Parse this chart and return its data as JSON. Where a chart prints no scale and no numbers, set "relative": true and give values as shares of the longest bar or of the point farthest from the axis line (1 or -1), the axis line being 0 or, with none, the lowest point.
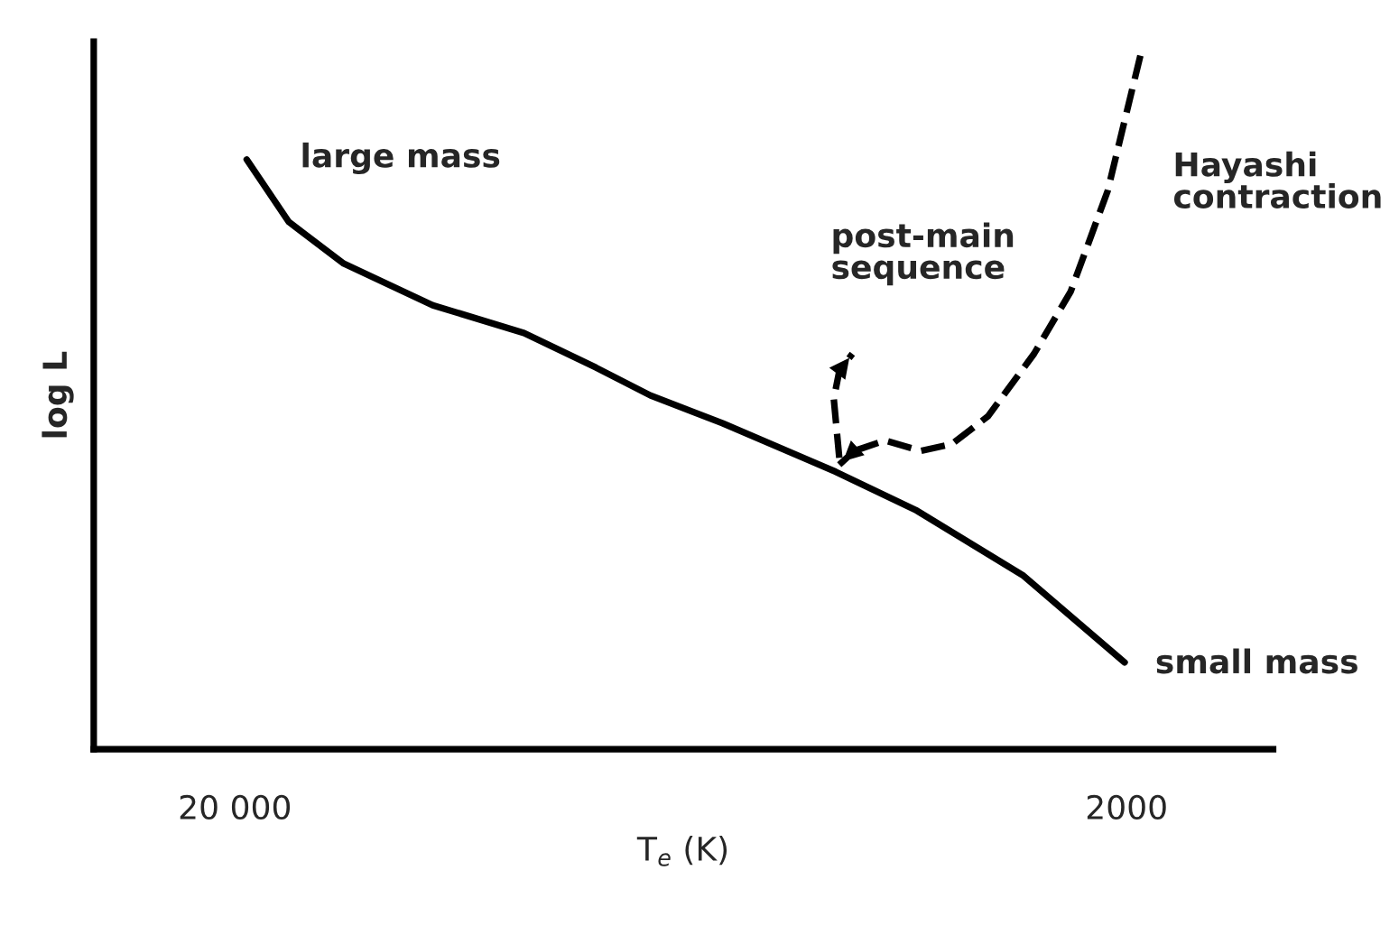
{
  "chart_data": {
    "type": "line",
    "relative": true,
    "xlabel": "T$_{e}$ (K)",
    "ylabel": "log L",
    "log": "x",
    "xlim": [
      28800,
      1370
    ],
    "xticks": [
      {
        "value": 20000,
        "label": "20 000"
      },
      2000
    ],
    "tick_labels": "x",
    "grid": false,
    "legend": false,
    "marker": "none",
    "series": [
      {
        "color": "#000000",
        "line_style": "solid",
        "x": [
          19400,
          17400,
          15100,
          12000,
          9480,
          7870,
          6840,
          5680,
          4240,
          3450,
          2610,
          2010
        ],
        "values": [
          0.85,
          0.76,
          0.7,
          0.64,
          0.6,
          0.55,
          0.51,
          0.47,
          0.4,
          0.345,
          0.25,
          0.125
        ]
      },
      {
        "color": "#000000",
        "line_style": "dashed",
        "x": [
          1930,
          2100,
          2310,
          2540,
          2860,
          3140,
          3400,
          3730,
          4040,
          4200
        ],
        "values": [
          1.0,
          0.805,
          0.66,
          0.57,
          0.48,
          0.44,
          0.43,
          0.445,
          0.43,
          0.41
        ]
      },
      {
        "color": "#000000",
        "line_style": "dashed",
        "x": [
          4200,
          4260,
          4200,
          4060
        ],
        "values": [
          0.42,
          0.505,
          0.545,
          0.57
        ]
      }
    ],
    "annotations": [
      "large mass",
      "post-main\nsequence",
      "Hayashi\ncontraction",
      "small mass"
    ]
  }
}
